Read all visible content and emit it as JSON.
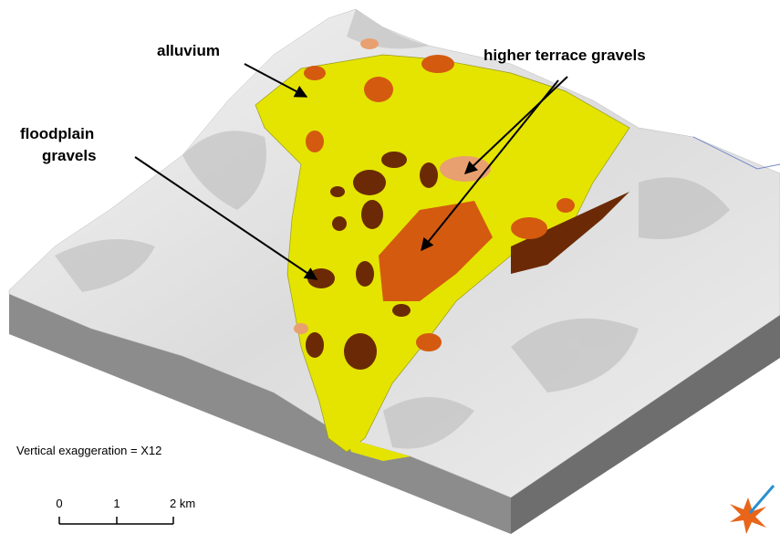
{
  "labels": {
    "alluvium": "alluvium",
    "higher_terrace": "higher terrace gravels",
    "floodplain": [
      "floodplain",
      "gravels"
    ]
  },
  "note": "Vertical exaggeration = X12",
  "scale_bar": [
    "0",
    "1",
    "2 km"
  ]
}
